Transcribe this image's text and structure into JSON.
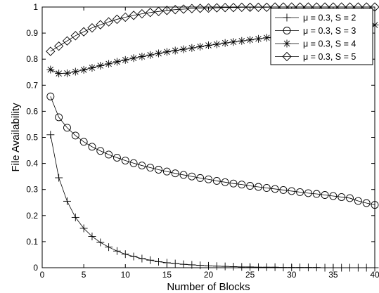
{
  "chart_data": {
    "type": "line",
    "title": "",
    "xlabel": "Number of Blocks",
    "ylabel": "File Availability",
    "xlim": [
      0,
      40
    ],
    "ylim": [
      0,
      1
    ],
    "xticks": [
      0,
      5,
      10,
      15,
      20,
      25,
      30,
      35,
      40
    ],
    "yticks": [
      0,
      0.1,
      0.2,
      0.3,
      0.4,
      0.5,
      0.6,
      0.7,
      0.8,
      0.9,
      1
    ],
    "grid": false,
    "legend_position": "top-right",
    "x": [
      1,
      2,
      3,
      4,
      5,
      6,
      7,
      8,
      9,
      10,
      11,
      12,
      13,
      14,
      15,
      16,
      17,
      18,
      19,
      20,
      21,
      22,
      23,
      24,
      25,
      26,
      27,
      28,
      29,
      30,
      31,
      32,
      33,
      34,
      35,
      36,
      37,
      38,
      39,
      40
    ],
    "series": [
      {
        "name": "μ = 0.3, S = 2",
        "marker": "plus",
        "values": [
          0.51,
          0.345,
          0.255,
          0.193,
          0.151,
          0.12,
          0.097,
          0.079,
          0.064,
          0.052,
          0.043,
          0.035,
          0.029,
          0.023,
          0.019,
          0.016,
          0.013,
          0.011,
          0.009,
          0.007,
          0.006,
          0.005,
          0.004,
          0.003,
          0.003,
          0.002,
          0.002,
          0.002,
          0.001,
          0.001,
          0.001,
          0.001,
          0.001,
          0.0,
          0.0,
          0.0,
          0.0,
          0.0,
          0.0,
          0.0
        ]
      },
      {
        "name": "μ = 0.3, S = 3",
        "marker": "circle",
        "values": [
          0.657,
          0.577,
          0.537,
          0.507,
          0.483,
          0.464,
          0.448,
          0.434,
          0.422,
          0.411,
          0.401,
          0.392,
          0.384,
          0.376,
          0.369,
          0.362,
          0.356,
          0.35,
          0.344,
          0.339,
          0.333,
          0.328,
          0.323,
          0.319,
          0.314,
          0.31,
          0.306,
          0.302,
          0.298,
          0.294,
          0.29,
          0.286,
          0.283,
          0.279,
          0.275,
          0.271,
          0.267,
          0.256,
          0.248,
          0.241
        ]
      },
      {
        "name": "μ = 0.3, S = 4",
        "marker": "asterisk",
        "values": [
          0.76,
          0.745,
          0.746,
          0.752,
          0.759,
          0.767,
          0.775,
          0.782,
          0.79,
          0.797,
          0.804,
          0.81,
          0.816,
          0.822,
          0.828,
          0.833,
          0.838,
          0.843,
          0.848,
          0.853,
          0.857,
          0.862,
          0.866,
          0.87,
          0.874,
          0.878,
          0.882,
          0.886,
          0.889,
          0.893,
          0.896,
          0.9,
          0.903,
          0.906,
          0.909,
          0.912,
          0.915,
          0.919,
          0.924,
          0.931
        ]
      },
      {
        "name": "μ = 0.3, S = 5",
        "marker": "diamond",
        "values": [
          0.83,
          0.85,
          0.87,
          0.89,
          0.905,
          0.92,
          0.932,
          0.943,
          0.953,
          0.961,
          0.968,
          0.974,
          0.979,
          0.983,
          0.987,
          0.99,
          0.992,
          0.994,
          0.995,
          0.996,
          0.997,
          0.998,
          0.998,
          0.999,
          0.999,
          0.999,
          0.999,
          1.0,
          1.0,
          1.0,
          1.0,
          1.0,
          1.0,
          1.0,
          1.0,
          1.0,
          1.0,
          1.0,
          1.0,
          1.0
        ]
      }
    ]
  }
}
